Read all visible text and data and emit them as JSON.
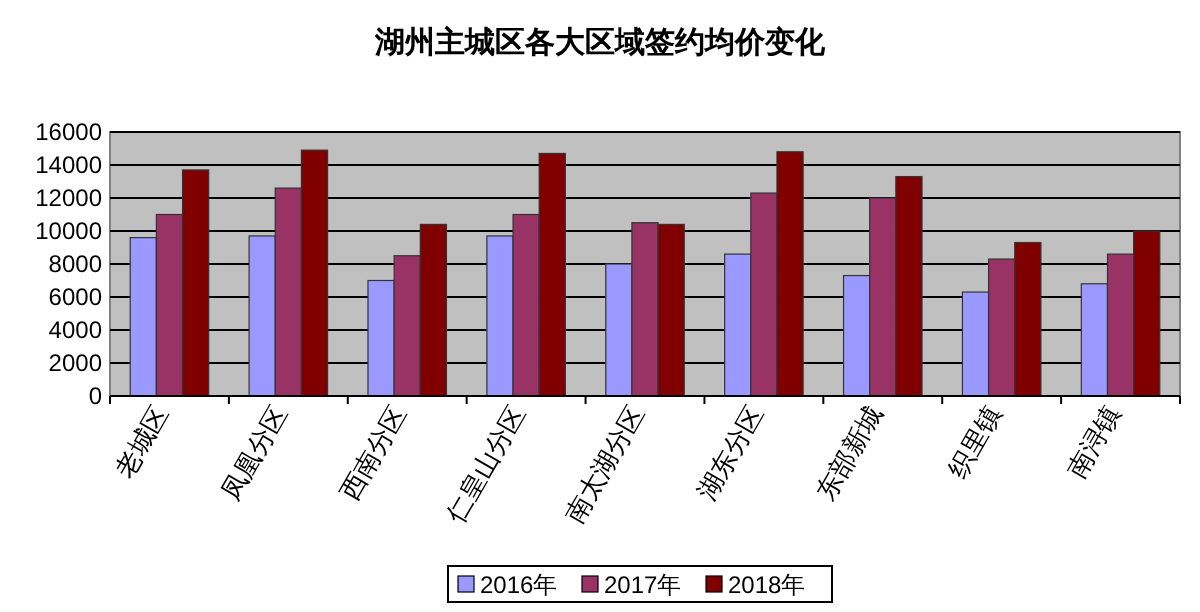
{
  "chart_data": {
    "type": "bar",
    "title": "湖州主城区各大区域签约均价变化",
    "categories": [
      "老城区",
      "凤凰分区",
      "西南分区",
      "仁皇山分区",
      "南太湖分区",
      "湖东分区",
      "东部新城",
      "织里镇",
      "南浔镇"
    ],
    "series": [
      {
        "name": "2016年",
        "color": "#9999ff",
        "values": [
          9600,
          9700,
          7000,
          9700,
          8000,
          8600,
          7300,
          6300,
          6800
        ]
      },
      {
        "name": "2017年",
        "color": "#993366",
        "values": [
          11000,
          12600,
          8500,
          11000,
          10500,
          12300,
          12000,
          8300,
          8600
        ]
      },
      {
        "name": "2018年",
        "color": "#800000",
        "values": [
          13700,
          14900,
          10400,
          14700,
          10400,
          14800,
          13300,
          9300,
          10000
        ]
      }
    ],
    "ylim": [
      0,
      16000
    ],
    "yticks": [
      0,
      2000,
      4000,
      6000,
      8000,
      10000,
      12000,
      14000,
      16000
    ],
    "grid": "y",
    "legend": "bottom"
  }
}
